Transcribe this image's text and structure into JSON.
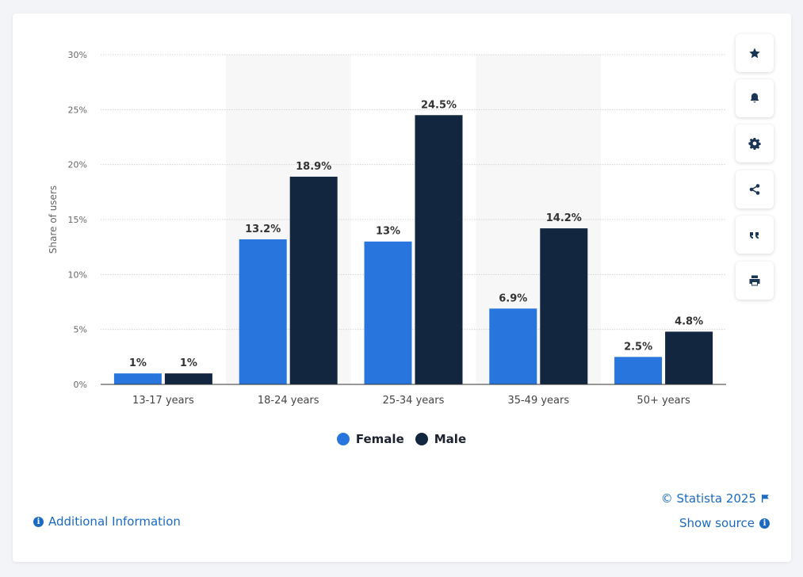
{
  "chart_data": {
    "type": "bar",
    "categories": [
      "13-17 years",
      "18-24 years",
      "25-34 years",
      "35-49 years",
      "50+ years"
    ],
    "series": [
      {
        "name": "Female",
        "values": [
          1,
          13.2,
          13,
          6.9,
          2.5
        ],
        "labels": [
          "1%",
          "13.2%",
          "13%",
          "6.9%",
          "2.5%"
        ],
        "color": "#2876dd"
      },
      {
        "name": "Male",
        "values": [
          1,
          18.9,
          24.5,
          14.2,
          4.8
        ],
        "labels": [
          "1%",
          "18.9%",
          "24.5%",
          "14.2%",
          "4.8%"
        ],
        "color": "#12263f"
      }
    ],
    "ylabel": "Share of users",
    "xlabel": "",
    "ylim": [
      0,
      30
    ],
    "yticks": [
      0,
      5,
      10,
      15,
      20,
      25,
      30
    ],
    "ytick_labels": [
      "0%",
      "5%",
      "10%",
      "15%",
      "20%",
      "25%",
      "30%"
    ],
    "grid": true,
    "legend_position": "bottom-center"
  },
  "toolbar": {
    "icons": [
      "star-icon",
      "bell-icon",
      "gear-icon",
      "share-icon",
      "quote-icon",
      "print-icon"
    ]
  },
  "footer": {
    "additional_info": "Additional Information",
    "copyright": "© Statista 2025",
    "show_source": "Show source"
  },
  "colors": {
    "accent_link": "#1a6ac1",
    "band": "#f7f7f8",
    "axis": "#333333",
    "grid": "#d3d3d3"
  }
}
